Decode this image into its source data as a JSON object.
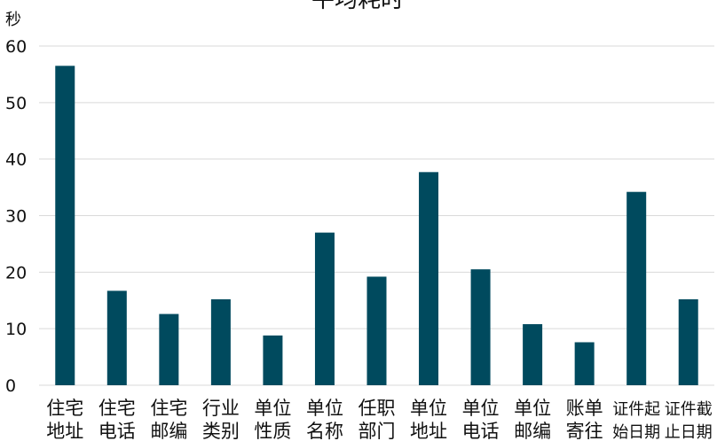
{
  "chart_data": {
    "type": "bar",
    "title": "平均耗时",
    "ylabel": "秒",
    "xlabel": "",
    "ylim": [
      0,
      60
    ],
    "yticks": [
      0,
      10,
      20,
      30,
      40,
      50,
      60
    ],
    "grid": true,
    "bar_color": "#004a5e",
    "categories": [
      [
        "住宅",
        "地址"
      ],
      [
        "住宅",
        "电话"
      ],
      [
        "住宅",
        "邮编"
      ],
      [
        "行业",
        "类别"
      ],
      [
        "单位",
        "性质"
      ],
      [
        "单位",
        "名称"
      ],
      [
        "任职",
        "部门"
      ],
      [
        "单位",
        "地址"
      ],
      [
        "单位",
        "电话"
      ],
      [
        "单位",
        "邮编"
      ],
      [
        "账单",
        "寄往"
      ],
      [
        "证件起",
        "始日期"
      ],
      [
        "证件截",
        "止日期"
      ]
    ],
    "values": [
      56.5,
      16.7,
      12.6,
      15.2,
      8.8,
      27.0,
      19.2,
      37.7,
      20.5,
      10.8,
      7.6,
      34.2,
      15.2
    ]
  }
}
